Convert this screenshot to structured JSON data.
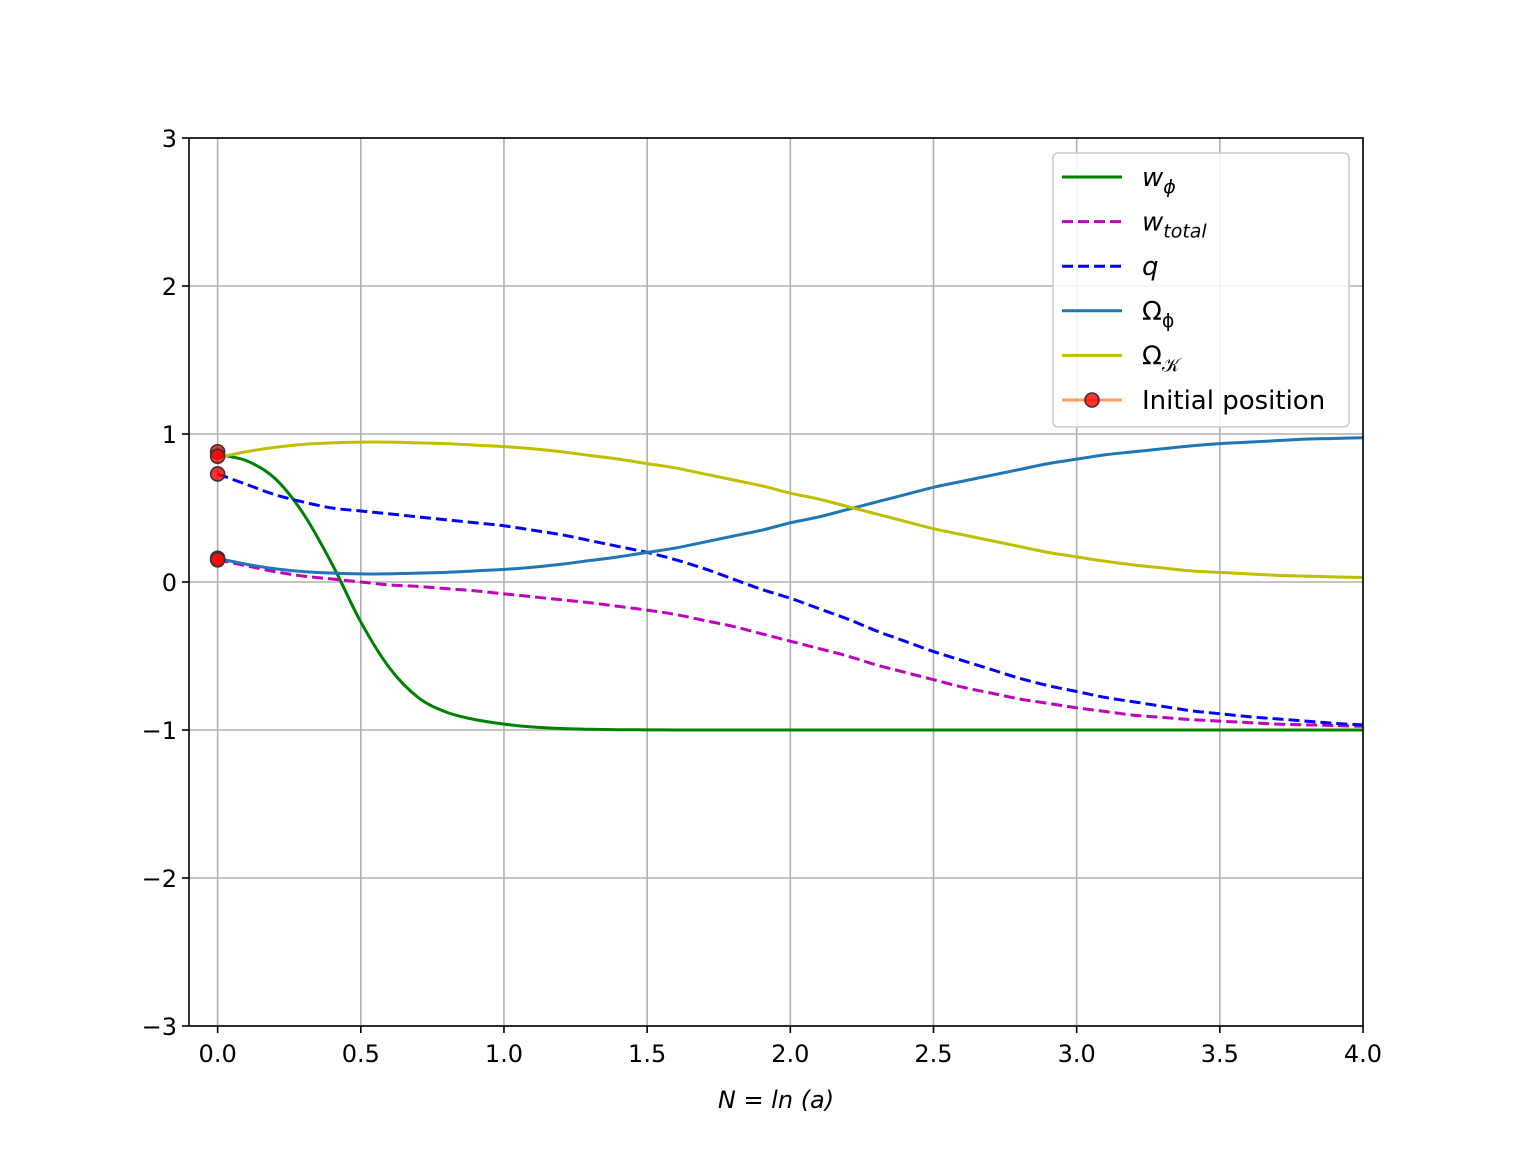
{
  "chart_data": {
    "type": "line",
    "xlabel": "N = ln (a)",
    "ylabel": "",
    "xlim": [
      -0.1,
      4.0
    ],
    "ylim": [
      -3,
      3
    ],
    "grid": true,
    "legend_position": "upper-right",
    "x_ticks": [
      0.0,
      0.5,
      1.0,
      1.5,
      2.0,
      2.5,
      3.0,
      3.5,
      4.0
    ],
    "x_tick_labels": [
      "0.0",
      "0.5",
      "1.0",
      "1.5",
      "2.0",
      "2.5",
      "3.0",
      "3.5",
      "4.0"
    ],
    "y_ticks": [
      -3,
      -2,
      -1,
      0,
      1,
      2,
      3
    ],
    "y_tick_labels": [
      "−3",
      "−2",
      "−1",
      "0",
      "1",
      "2",
      "3"
    ],
    "x": [
      0.0,
      0.1,
      0.2,
      0.3,
      0.4,
      0.5,
      0.6,
      0.7,
      0.8,
      0.9,
      1.0,
      1.1,
      1.2,
      1.3,
      1.4,
      1.5,
      1.6,
      1.7,
      1.8,
      1.9,
      2.0,
      2.1,
      2.2,
      2.3,
      2.4,
      2.5,
      2.6,
      2.7,
      2.8,
      2.9,
      3.0,
      3.1,
      3.2,
      3.3,
      3.4,
      3.5,
      3.6,
      3.7,
      3.8,
      3.9,
      4.0
    ],
    "series": [
      {
        "name": "w_ϕ",
        "color": "#008000",
        "dash": "solid",
        "values": [
          0.86,
          0.82,
          0.7,
          0.46,
          0.12,
          -0.27,
          -0.58,
          -0.78,
          -0.88,
          -0.93,
          -0.96,
          -0.98,
          -0.99,
          -0.995,
          -0.998,
          -0.999,
          -1.0,
          -1.0,
          -1.0,
          -1.0,
          -1.0,
          -1.0,
          -1.0,
          -1.0,
          -1.0,
          -1.0,
          -1.0,
          -1.0,
          -1.0,
          -1.0,
          -1.0,
          -1.0,
          -1.0,
          -1.0,
          -1.0,
          -1.0,
          -1.0,
          -1.0,
          -1.0,
          -1.0,
          -1.0
        ]
      },
      {
        "name": "w_total",
        "color": "#bf00bf",
        "dash": "dashed",
        "values": [
          0.15,
          0.11,
          0.07,
          0.04,
          0.02,
          0.0,
          -0.02,
          -0.03,
          -0.045,
          -0.06,
          -0.08,
          -0.1,
          -0.12,
          -0.14,
          -0.165,
          -0.19,
          -0.22,
          -0.26,
          -0.3,
          -0.35,
          -0.4,
          -0.45,
          -0.5,
          -0.56,
          -0.61,
          -0.66,
          -0.71,
          -0.75,
          -0.79,
          -0.82,
          -0.85,
          -0.875,
          -0.9,
          -0.915,
          -0.93,
          -0.94,
          -0.95,
          -0.96,
          -0.965,
          -0.97,
          -0.975
        ]
      },
      {
        "name": "q",
        "color": "#0000ff",
        "dash": "dashed",
        "values": [
          0.73,
          0.66,
          0.59,
          0.54,
          0.5,
          0.48,
          0.46,
          0.44,
          0.42,
          0.4,
          0.38,
          0.35,
          0.32,
          0.28,
          0.24,
          0.2,
          0.15,
          0.09,
          0.02,
          -0.05,
          -0.11,
          -0.18,
          -0.25,
          -0.33,
          -0.4,
          -0.47,
          -0.53,
          -0.59,
          -0.65,
          -0.7,
          -0.74,
          -0.78,
          -0.81,
          -0.84,
          -0.87,
          -0.89,
          -0.91,
          -0.925,
          -0.94,
          -0.955,
          -0.965
        ]
      },
      {
        "name": "Ω_ϕ",
        "color": "#1f77b4",
        "dash": "solid",
        "values": [
          0.16,
          0.12,
          0.09,
          0.07,
          0.06,
          0.055,
          0.055,
          0.06,
          0.065,
          0.075,
          0.085,
          0.1,
          0.12,
          0.145,
          0.17,
          0.2,
          0.23,
          0.27,
          0.31,
          0.35,
          0.4,
          0.44,
          0.49,
          0.54,
          0.59,
          0.64,
          0.68,
          0.72,
          0.76,
          0.8,
          0.83,
          0.86,
          0.88,
          0.9,
          0.92,
          0.935,
          0.945,
          0.955,
          0.965,
          0.97,
          0.975
        ]
      },
      {
        "name": "Ω_𝒦",
        "color": "#bfbf00",
        "dash": "solid",
        "values": [
          0.84,
          0.88,
          0.91,
          0.93,
          0.94,
          0.945,
          0.945,
          0.94,
          0.935,
          0.925,
          0.915,
          0.9,
          0.88,
          0.855,
          0.83,
          0.8,
          0.77,
          0.73,
          0.69,
          0.65,
          0.6,
          0.56,
          0.51,
          0.46,
          0.41,
          0.36,
          0.32,
          0.28,
          0.24,
          0.2,
          0.17,
          0.14,
          0.115,
          0.095,
          0.075,
          0.065,
          0.055,
          0.045,
          0.04,
          0.035,
          0.03
        ]
      }
    ],
    "initial_positions": {
      "name": "Initial position",
      "line_color": "#ffa060",
      "marker_color": "#ff0000",
      "x": [
        0.0,
        0.0,
        0.0,
        0.0,
        0.0
      ],
      "y": [
        0.88,
        0.85,
        0.73,
        0.16,
        0.15
      ]
    },
    "legend": [
      {
        "base": "w",
        "sub": "ϕ",
        "italic": true,
        "color": "#008000",
        "dash": "solid"
      },
      {
        "base": "w",
        "sub": "total",
        "italic": true,
        "color": "#bf00bf",
        "dash": "dashed"
      },
      {
        "base": "q",
        "sub": "",
        "italic": true,
        "color": "#0000ff",
        "dash": "dashed"
      },
      {
        "base": "Ω",
        "sub": "ϕ",
        "italic": false,
        "color": "#1f77b4",
        "dash": "solid"
      },
      {
        "base": "Ω",
        "sub": "𝒦",
        "italic": false,
        "color": "#bfbf00",
        "dash": "solid"
      },
      {
        "base": "Initial position",
        "sub": "",
        "italic": false,
        "color": "#ffa060",
        "dash": "solid",
        "marker": true
      }
    ]
  }
}
